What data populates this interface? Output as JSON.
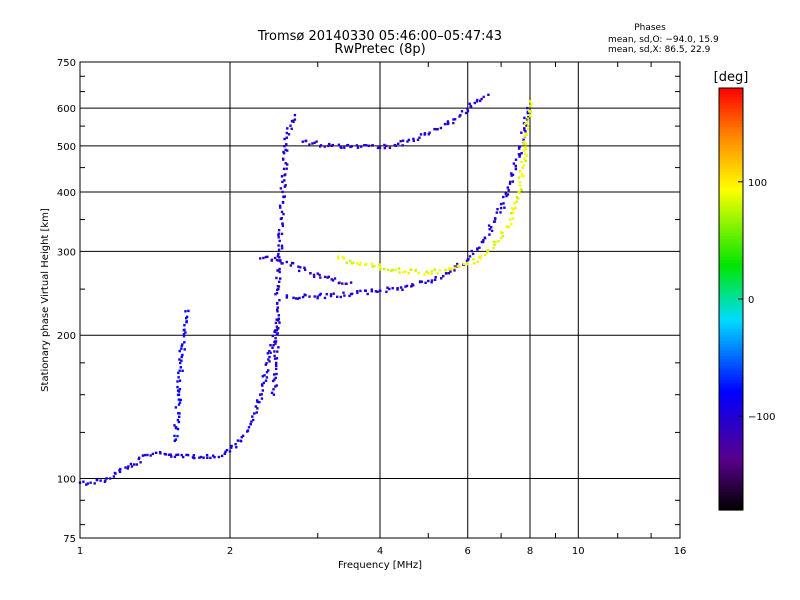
{
  "chart_data": {
    "type": "scatter",
    "title": "Tromsø 20140330 05:46:00–05:47:43",
    "subtitle": "RwPretec (8p)",
    "xlabel": "Frequency [MHz]",
    "ylabel": "Stationary phase Virtual Height [km]",
    "x_scale": "log",
    "y_scale": "log",
    "xlim": [
      1,
      16
    ],
    "ylim": [
      75,
      750
    ],
    "x_ticks": [
      "1",
      "2",
      "4",
      "6",
      "8",
      "10",
      "16"
    ],
    "x_tick_values": [
      1,
      2,
      4,
      6,
      8,
      10,
      16
    ],
    "y_ticks": [
      "75",
      "100",
      "200",
      "300",
      "400",
      "500",
      "600",
      "750"
    ],
    "y_tick_values": [
      75,
      100,
      200,
      300,
      400,
      500,
      600,
      750
    ],
    "grid": true,
    "phases": {
      "title": "Phases",
      "line_o": "mean, sd,O: −94.0, 15.9",
      "line_x": "mean, sd,X:  86.5, 22.9"
    },
    "colorbar": {
      "label": "[deg]",
      "range": [
        -180,
        180
      ],
      "ticks": [
        "100",
        "0",
        "−100"
      ],
      "tick_values": [
        100,
        0,
        -100
      ]
    },
    "traces": [
      {
        "phase": -95,
        "points": [
          [
            1.0,
            98
          ],
          [
            1.05,
            98
          ],
          [
            1.1,
            99
          ],
          [
            1.15,
            100
          ],
          [
            1.2,
            104
          ],
          [
            1.25,
            106
          ],
          [
            1.3,
            107
          ],
          [
            1.35,
            112
          ],
          [
            1.45,
            113
          ],
          [
            1.6,
            112
          ],
          [
            1.75,
            111
          ],
          [
            1.9,
            111
          ],
          [
            2.0,
            114
          ],
          [
            2.1,
            120
          ],
          [
            2.2,
            130
          ],
          [
            2.3,
            150
          ],
          [
            2.4,
            180
          ],
          [
            2.5,
            215
          ]
        ]
      },
      {
        "phase": -100,
        "points": [
          [
            2.6,
            240
          ],
          [
            3.0,
            241
          ],
          [
            3.5,
            244
          ],
          [
            4.0,
            248
          ],
          [
            4.5,
            253
          ],
          [
            5.0,
            260
          ],
          [
            5.5,
            270
          ],
          [
            6.0,
            288
          ],
          [
            6.5,
            320
          ],
          [
            7.0,
            370
          ],
          [
            7.3,
            420
          ],
          [
            7.6,
            480
          ],
          [
            7.8,
            540
          ],
          [
            7.9,
            600
          ]
        ]
      },
      {
        "phase": 90,
        "points": [
          [
            3.3,
            290
          ],
          [
            3.6,
            283
          ],
          [
            4.0,
            278
          ],
          [
            4.5,
            272
          ],
          [
            5.0,
            270
          ],
          [
            5.5,
            275
          ],
          [
            6.0,
            282
          ],
          [
            6.5,
            295
          ],
          [
            7.0,
            320
          ],
          [
            7.3,
            350
          ],
          [
            7.6,
            400
          ],
          [
            7.8,
            470
          ],
          [
            7.9,
            560
          ],
          [
            8.0,
            620
          ]
        ]
      },
      {
        "phase": -105,
        "points": [
          [
            2.8,
            510
          ],
          [
            3.2,
            500
          ],
          [
            3.8,
            500
          ],
          [
            4.3,
            500
          ],
          [
            4.8,
            520
          ],
          [
            5.3,
            545
          ],
          [
            5.8,
            580
          ],
          [
            6.2,
            615
          ],
          [
            6.6,
            640
          ]
        ]
      },
      {
        "phase": -110,
        "points": [
          [
            2.3,
            290
          ],
          [
            2.6,
            285
          ],
          [
            2.9,
            270
          ],
          [
            3.2,
            262
          ],
          [
            3.5,
            258
          ]
        ]
      },
      {
        "phase": -100,
        "points": [
          [
            2.45,
            150
          ],
          [
            2.5,
            250
          ],
          [
            2.55,
            400
          ],
          [
            2.6,
            520
          ],
          [
            2.7,
            580
          ]
        ]
      },
      {
        "phase": -85,
        "points": [
          [
            1.55,
            120
          ],
          [
            1.58,
            150
          ],
          [
            1.6,
            180
          ],
          [
            1.62,
            210
          ],
          [
            1.65,
            225
          ]
        ]
      }
    ]
  }
}
